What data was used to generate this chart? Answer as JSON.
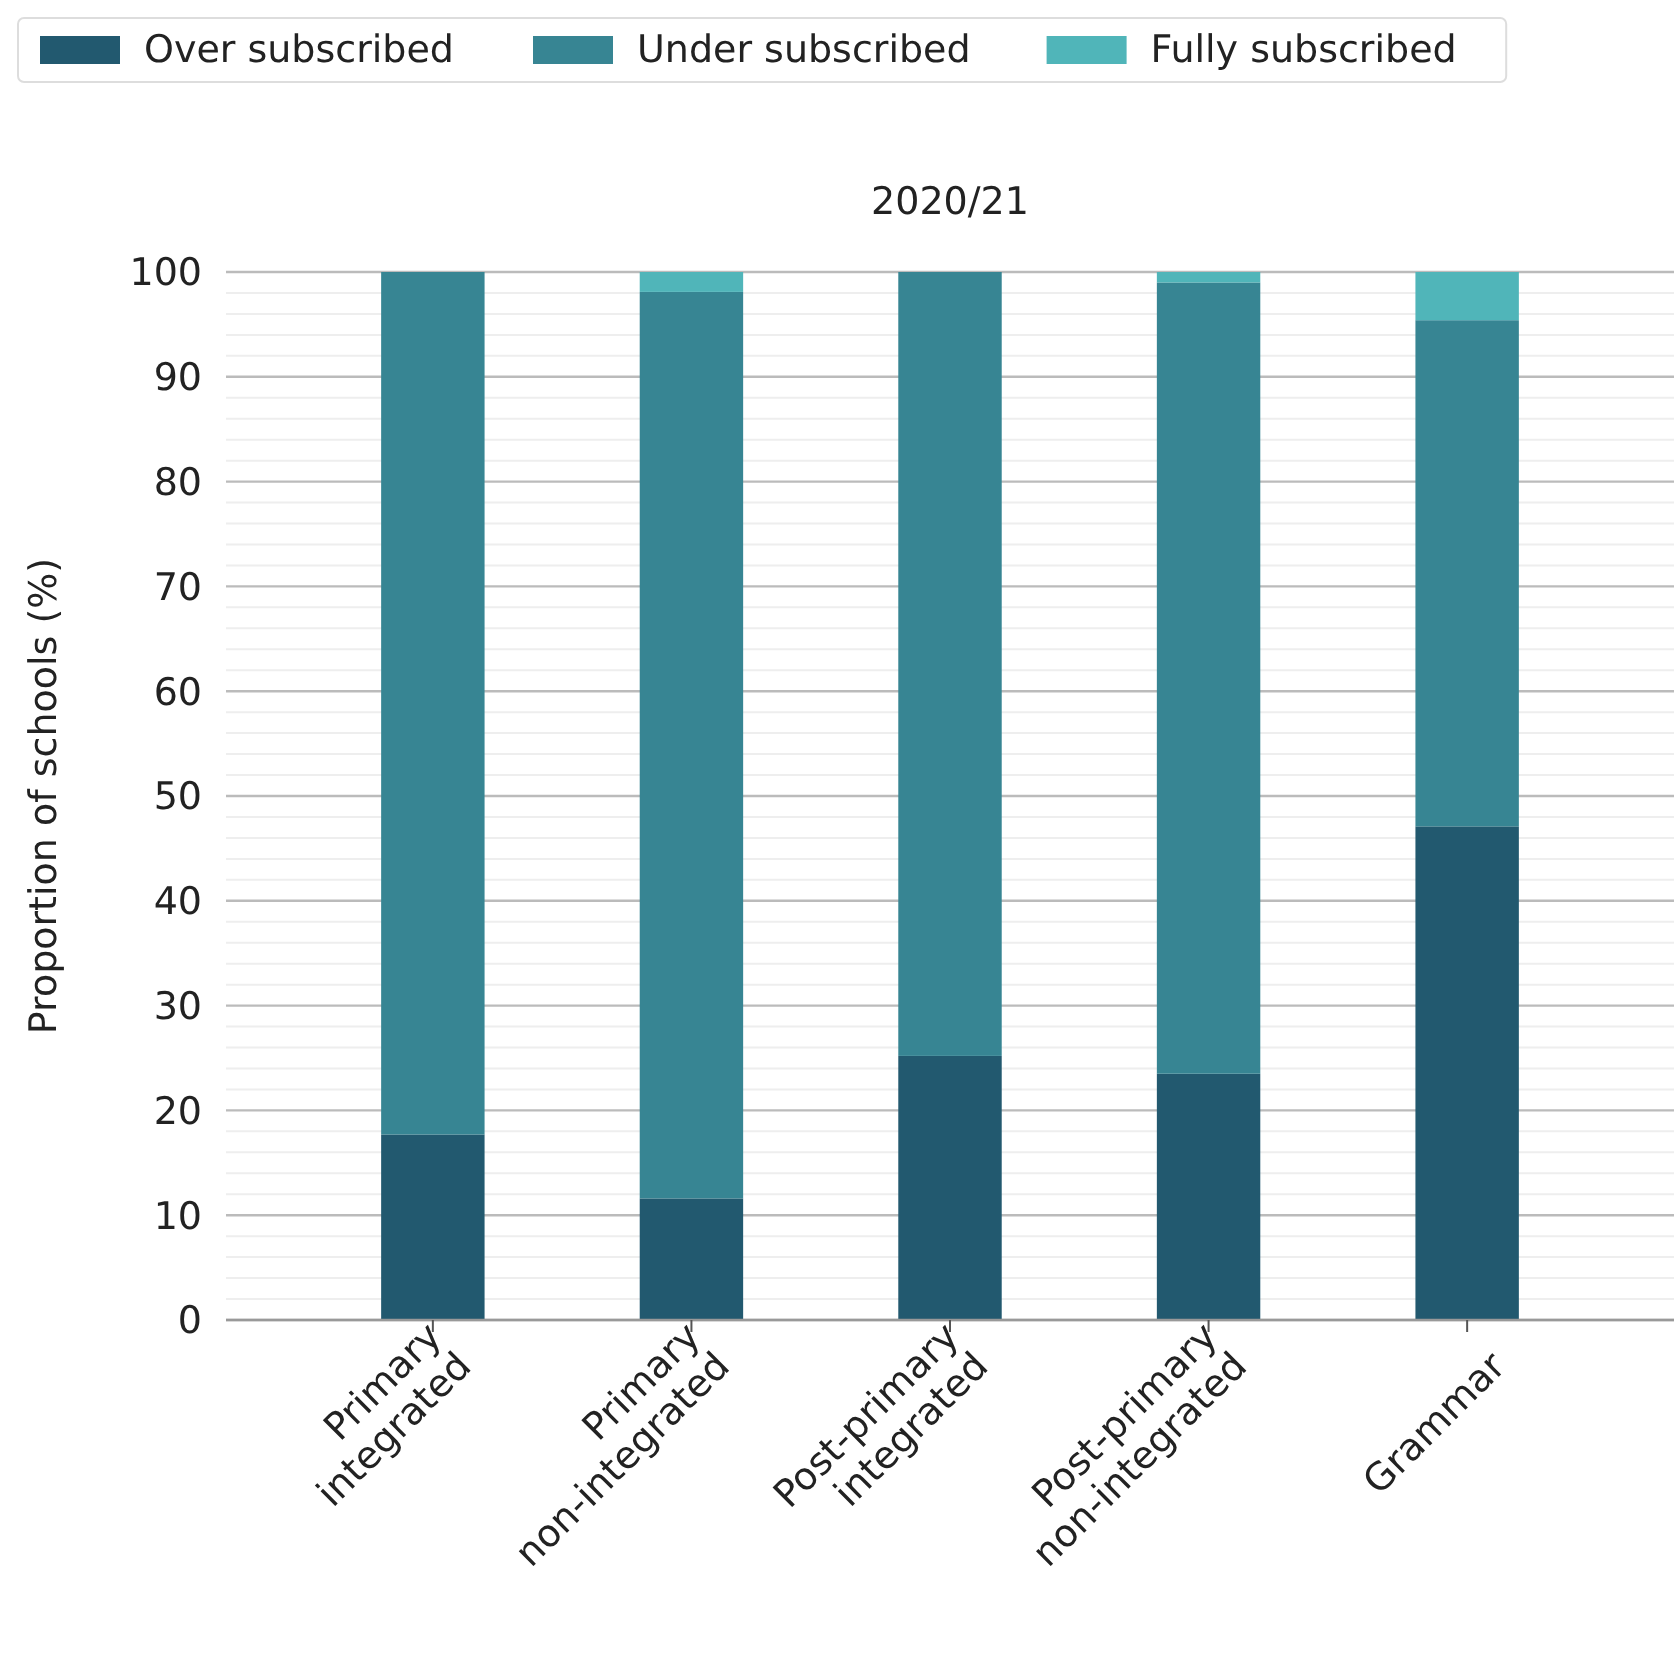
{
  "chart_data": {
    "type": "bar",
    "title": "2020/21",
    "ylabel": "Proportion of schools (%)",
    "categories": [
      "Primary\nintegrated",
      "Primary\nnon-integrated",
      "Post-primary\nintegrated",
      "Post-primary\nnon-integrated",
      "Grammar"
    ],
    "stacked": true,
    "series": [
      {
        "name": "Over subscribed",
        "color": "#22596f",
        "values": [
          17.7,
          11.6,
          25.2,
          23.5,
          47.1
        ]
      },
      {
        "name": "Under subscribed",
        "color": "#378593",
        "values": [
          82.3,
          86.5,
          74.8,
          75.5,
          48.3
        ]
      },
      {
        "name": "Fully subscribed",
        "color": "#50b5b9",
        "values": [
          0,
          1.9,
          0,
          1.0,
          4.6
        ]
      }
    ],
    "ylim": [
      0,
      100
    ],
    "yticks": [
      0,
      {
        "value": 2,
        "label": null
      },
      {
        "value": 4,
        "label": null
      },
      {
        "value": 6,
        "label": null
      },
      {
        "value": 8,
        "label": null
      },
      10,
      {
        "value": 12,
        "label": null
      },
      {
        "value": 14,
        "label": null
      },
      {
        "value": 16,
        "label": null
      },
      {
        "value": 18,
        "label": null
      },
      20,
      {
        "value": 22,
        "label": null
      },
      {
        "value": 24,
        "label": null
      },
      {
        "value": 26,
        "label": null
      },
      {
        "value": 28,
        "label": null
      },
      30,
      {
        "value": 32,
        "label": null
      },
      {
        "value": 34,
        "label": null
      },
      {
        "value": 36,
        "label": null
      },
      {
        "value": 38,
        "label": null
      },
      40,
      {
        "value": 42,
        "label": null
      },
      {
        "value": 44,
        "label": null
      },
      {
        "value": 46,
        "label": null
      },
      {
        "value": 48,
        "label": null
      },
      50,
      {
        "value": 52,
        "label": null
      },
      {
        "value": 54,
        "label": null
      },
      {
        "value": 56,
        "label": null
      },
      {
        "value": 58,
        "label": null
      },
      60,
      {
        "value": 62,
        "label": null
      },
      {
        "value": 64,
        "label": null
      },
      {
        "value": 66,
        "label": null
      },
      {
        "value": 68,
        "label": null
      },
      70,
      {
        "value": 72,
        "label": null
      },
      {
        "value": 74,
        "label": null
      },
      {
        "value": 76,
        "label": null
      },
      {
        "value": 78,
        "label": null
      },
      80,
      {
        "value": 82,
        "label": null
      },
      {
        "value": 84,
        "label": null
      },
      {
        "value": 86,
        "label": null
      },
      {
        "value": 88,
        "label": null
      },
      90,
      {
        "value": 92,
        "label": null
      },
      {
        "value": 94,
        "label": null
      },
      {
        "value": 96,
        "label": null
      },
      {
        "value": 98,
        "label": null
      },
      100
    ],
    "grid": "y",
    "legend": "top left"
  }
}
